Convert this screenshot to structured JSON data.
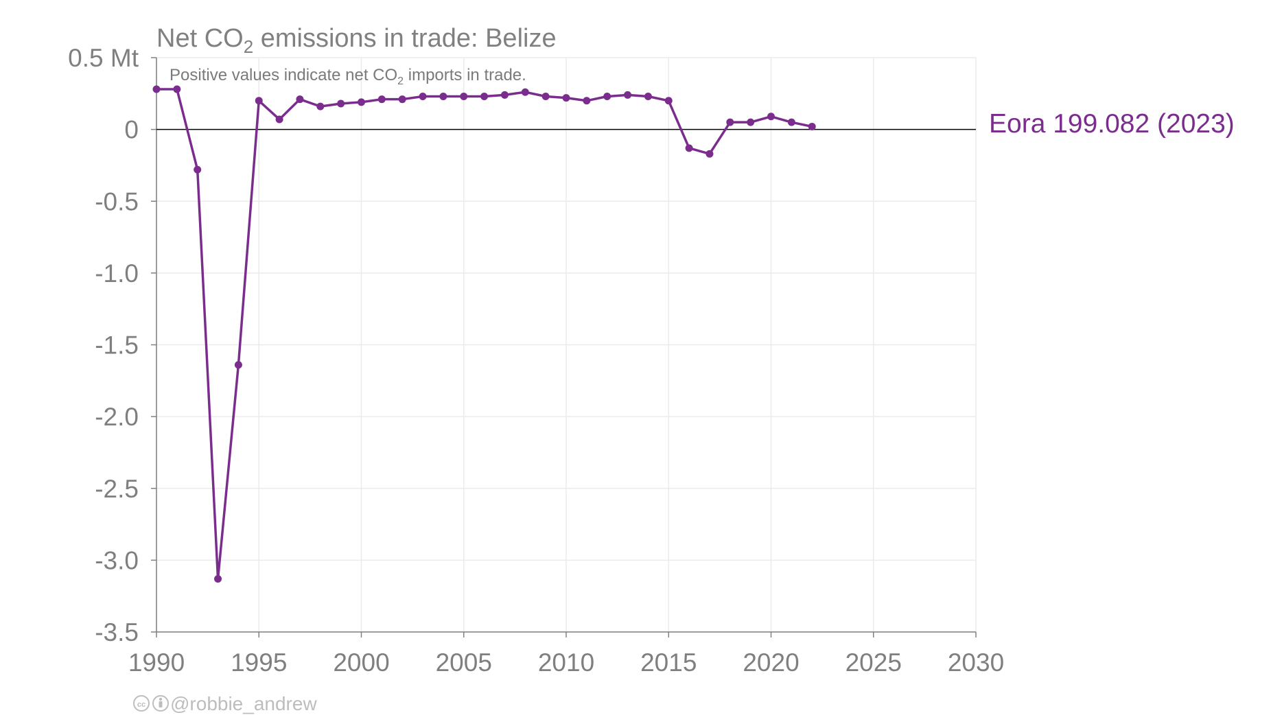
{
  "chart_data": {
    "type": "line",
    "title_prefix": "Net CO",
    "title_sub": "2",
    "title_suffix": " emissions in trade: Belize",
    "subtitle_prefix": "Positive values indicate net CO",
    "subtitle_sub": "2",
    "subtitle_suffix": " imports in trade.",
    "xlim": [
      1990,
      2030
    ],
    "ylim": [
      -3.5,
      0.5
    ],
    "x_ticks": [
      1990,
      1995,
      2000,
      2005,
      2010,
      2015,
      2020,
      2025,
      2030
    ],
    "y_ticks": [
      0.5,
      0,
      -0.5,
      -1.0,
      -1.5,
      -2.0,
      -2.5,
      -3.0,
      -3.5
    ],
    "y_tick_labels": [
      "0.5 Mt",
      "0",
      "-0.5",
      "-1.0",
      "-1.5",
      "-2.0",
      "-2.5",
      "-3.0",
      "-3.5"
    ],
    "grid": true,
    "series": [
      {
        "name": "Eora 199.082 (2023)",
        "color": "#7b2d8e",
        "x": [
          1990,
          1991,
          1992,
          1993,
          1994,
          1995,
          1996,
          1997,
          1998,
          1999,
          2000,
          2001,
          2002,
          2003,
          2004,
          2005,
          2006,
          2007,
          2008,
          2009,
          2010,
          2011,
          2012,
          2013,
          2014,
          2015,
          2016,
          2017,
          2018,
          2019,
          2020,
          2021,
          2022
        ],
        "y": [
          0.28,
          0.28,
          -0.28,
          -3.13,
          -1.64,
          0.2,
          0.07,
          0.21,
          0.16,
          0.18,
          0.19,
          0.21,
          0.21,
          0.23,
          0.23,
          0.23,
          0.23,
          0.24,
          0.26,
          0.23,
          0.22,
          0.2,
          0.23,
          0.24,
          0.23,
          0.2,
          -0.13,
          -0.17,
          0.05,
          0.05,
          0.09,
          0.05,
          0.02
        ]
      }
    ]
  },
  "credit": "@robbie_andrew",
  "colors": {
    "series": "#7b2d8e",
    "axis": "#7f7f7f",
    "grid": "#ebebeb",
    "zero_line": "#000000"
  }
}
